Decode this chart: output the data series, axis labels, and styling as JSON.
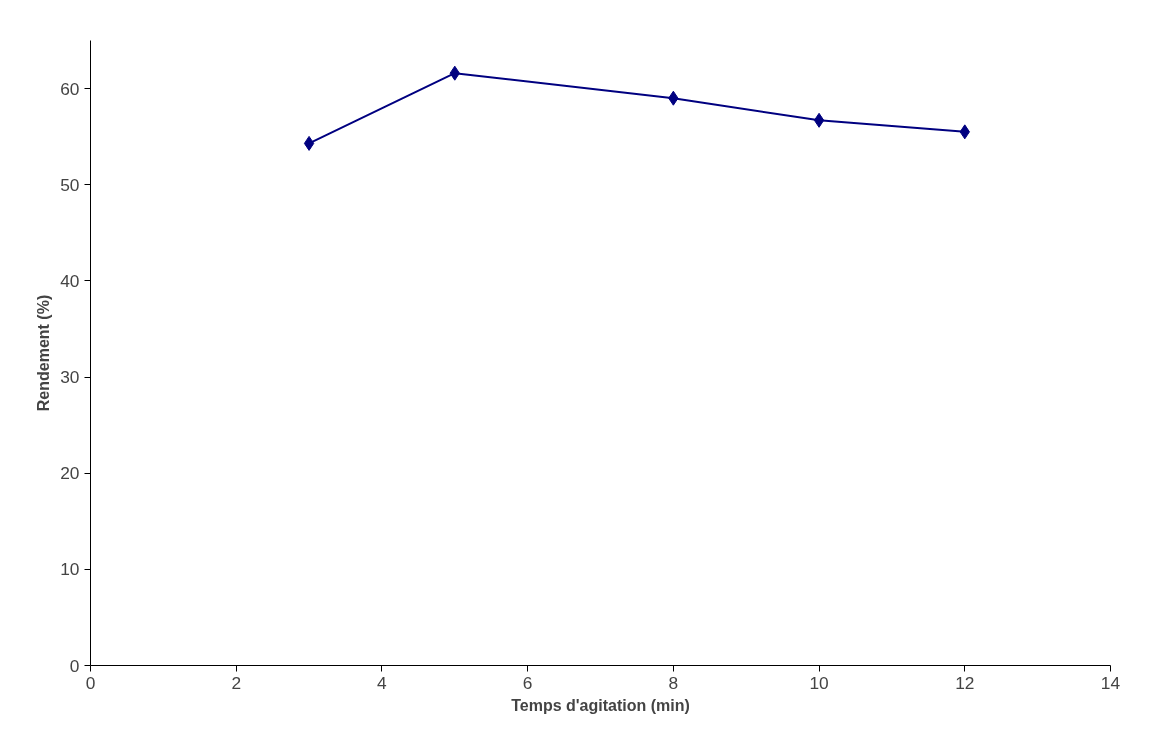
{
  "chart_data": {
    "type": "line",
    "xlabel": "Temps d'agitation (min)",
    "ylabel": "Rendement (%)",
    "x": [
      3,
      5,
      8,
      10,
      12
    ],
    "series": [
      {
        "color": "#000080",
        "values": [
          54.3,
          61.6,
          59.0,
          56.7,
          55.5
        ]
      }
    ],
    "xlim": [
      0,
      14
    ],
    "xticks": [
      0,
      2,
      4,
      6,
      8,
      10,
      12,
      14
    ],
    "ylim": [
      0,
      65
    ],
    "yticks": [
      0,
      10,
      20,
      30,
      40,
      50,
      60
    ],
    "marker": "diamond",
    "line_style": "solid",
    "grid": false
  }
}
